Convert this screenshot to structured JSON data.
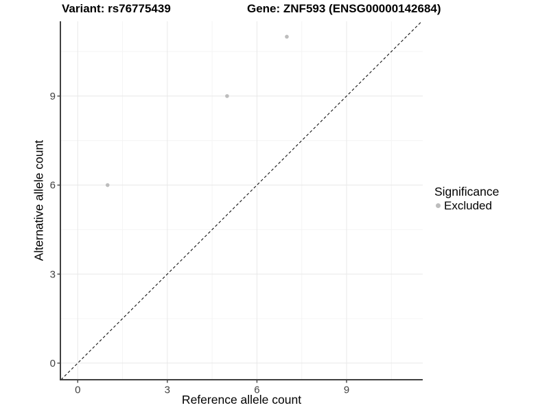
{
  "titles": {
    "variant": "Variant: rs76775439",
    "gene": "Gene: ZNF593 (ENSG00000142684)"
  },
  "chart_data": {
    "type": "scatter",
    "title": "Variant: rs76775439  Gene: ZNF593 (ENSG00000142684)",
    "xlabel": "Reference allele count",
    "ylabel": "Alternative allele count",
    "xlim": [
      -0.58,
      11.55
    ],
    "ylim": [
      -0.56,
      11.52
    ],
    "x_major_ticks": [
      0,
      3,
      6,
      9
    ],
    "y_major_ticks": [
      0,
      3,
      6,
      9
    ],
    "x_minor_gridlines": [
      1.5,
      4.5,
      7.5,
      10.5
    ],
    "y_minor_gridlines": [
      1.5,
      4.5,
      7.5,
      10.5
    ],
    "grid": true,
    "series": [
      {
        "name": "Excluded",
        "color": "#bdbdbd",
        "points": [
          [
            1,
            6
          ],
          [
            5,
            9
          ],
          [
            7,
            11
          ]
        ]
      }
    ],
    "identity_line": {
      "style": "dashed",
      "color": "#111111",
      "from": -0.56,
      "to": 11.52
    },
    "legend": {
      "title": "Significance",
      "position": "right",
      "items": [
        {
          "label": "Excluded",
          "color": "#bdbdbd"
        }
      ]
    },
    "colors": {
      "grid_major": "#e8e8e8",
      "grid_minor": "#f4f4f4",
      "axis_line": "#404040",
      "tick_label": "#404040",
      "point": "#bdbdbd"
    }
  }
}
